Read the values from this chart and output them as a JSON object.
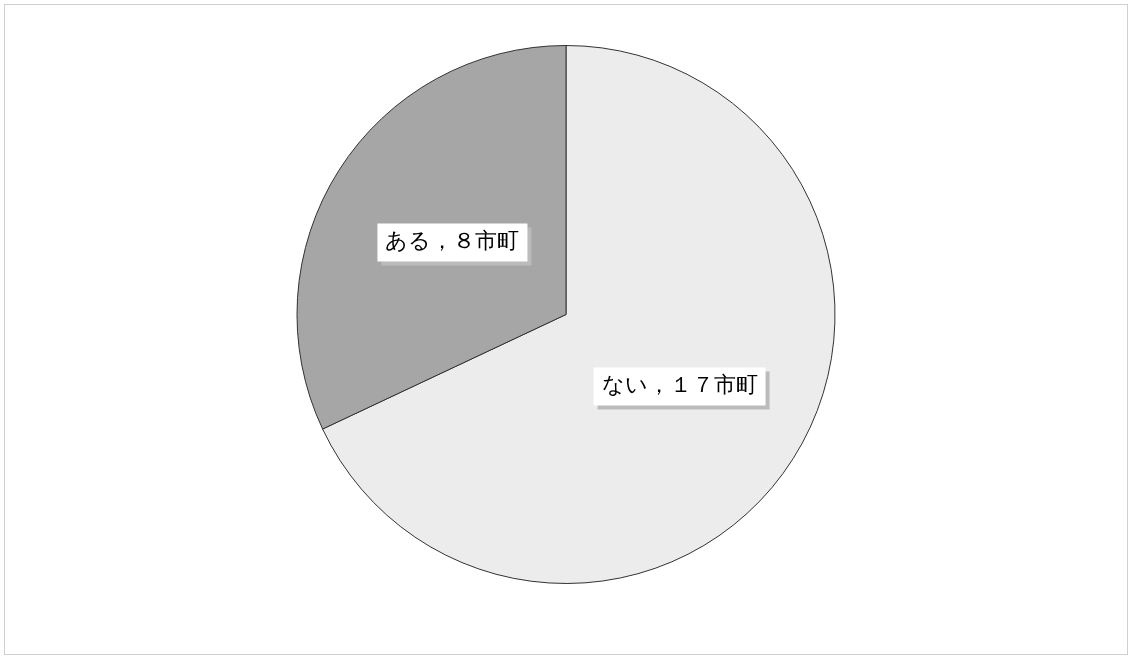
{
  "chart_data": {
    "type": "pie",
    "categories": [
      "ない",
      "ある"
    ],
    "values": [
      17,
      8
    ],
    "colors": [
      "#ececec",
      "#a6a6a6"
    ],
    "value_labels": [
      "１７市町",
      "８市町"
    ],
    "legend": false
  }
}
